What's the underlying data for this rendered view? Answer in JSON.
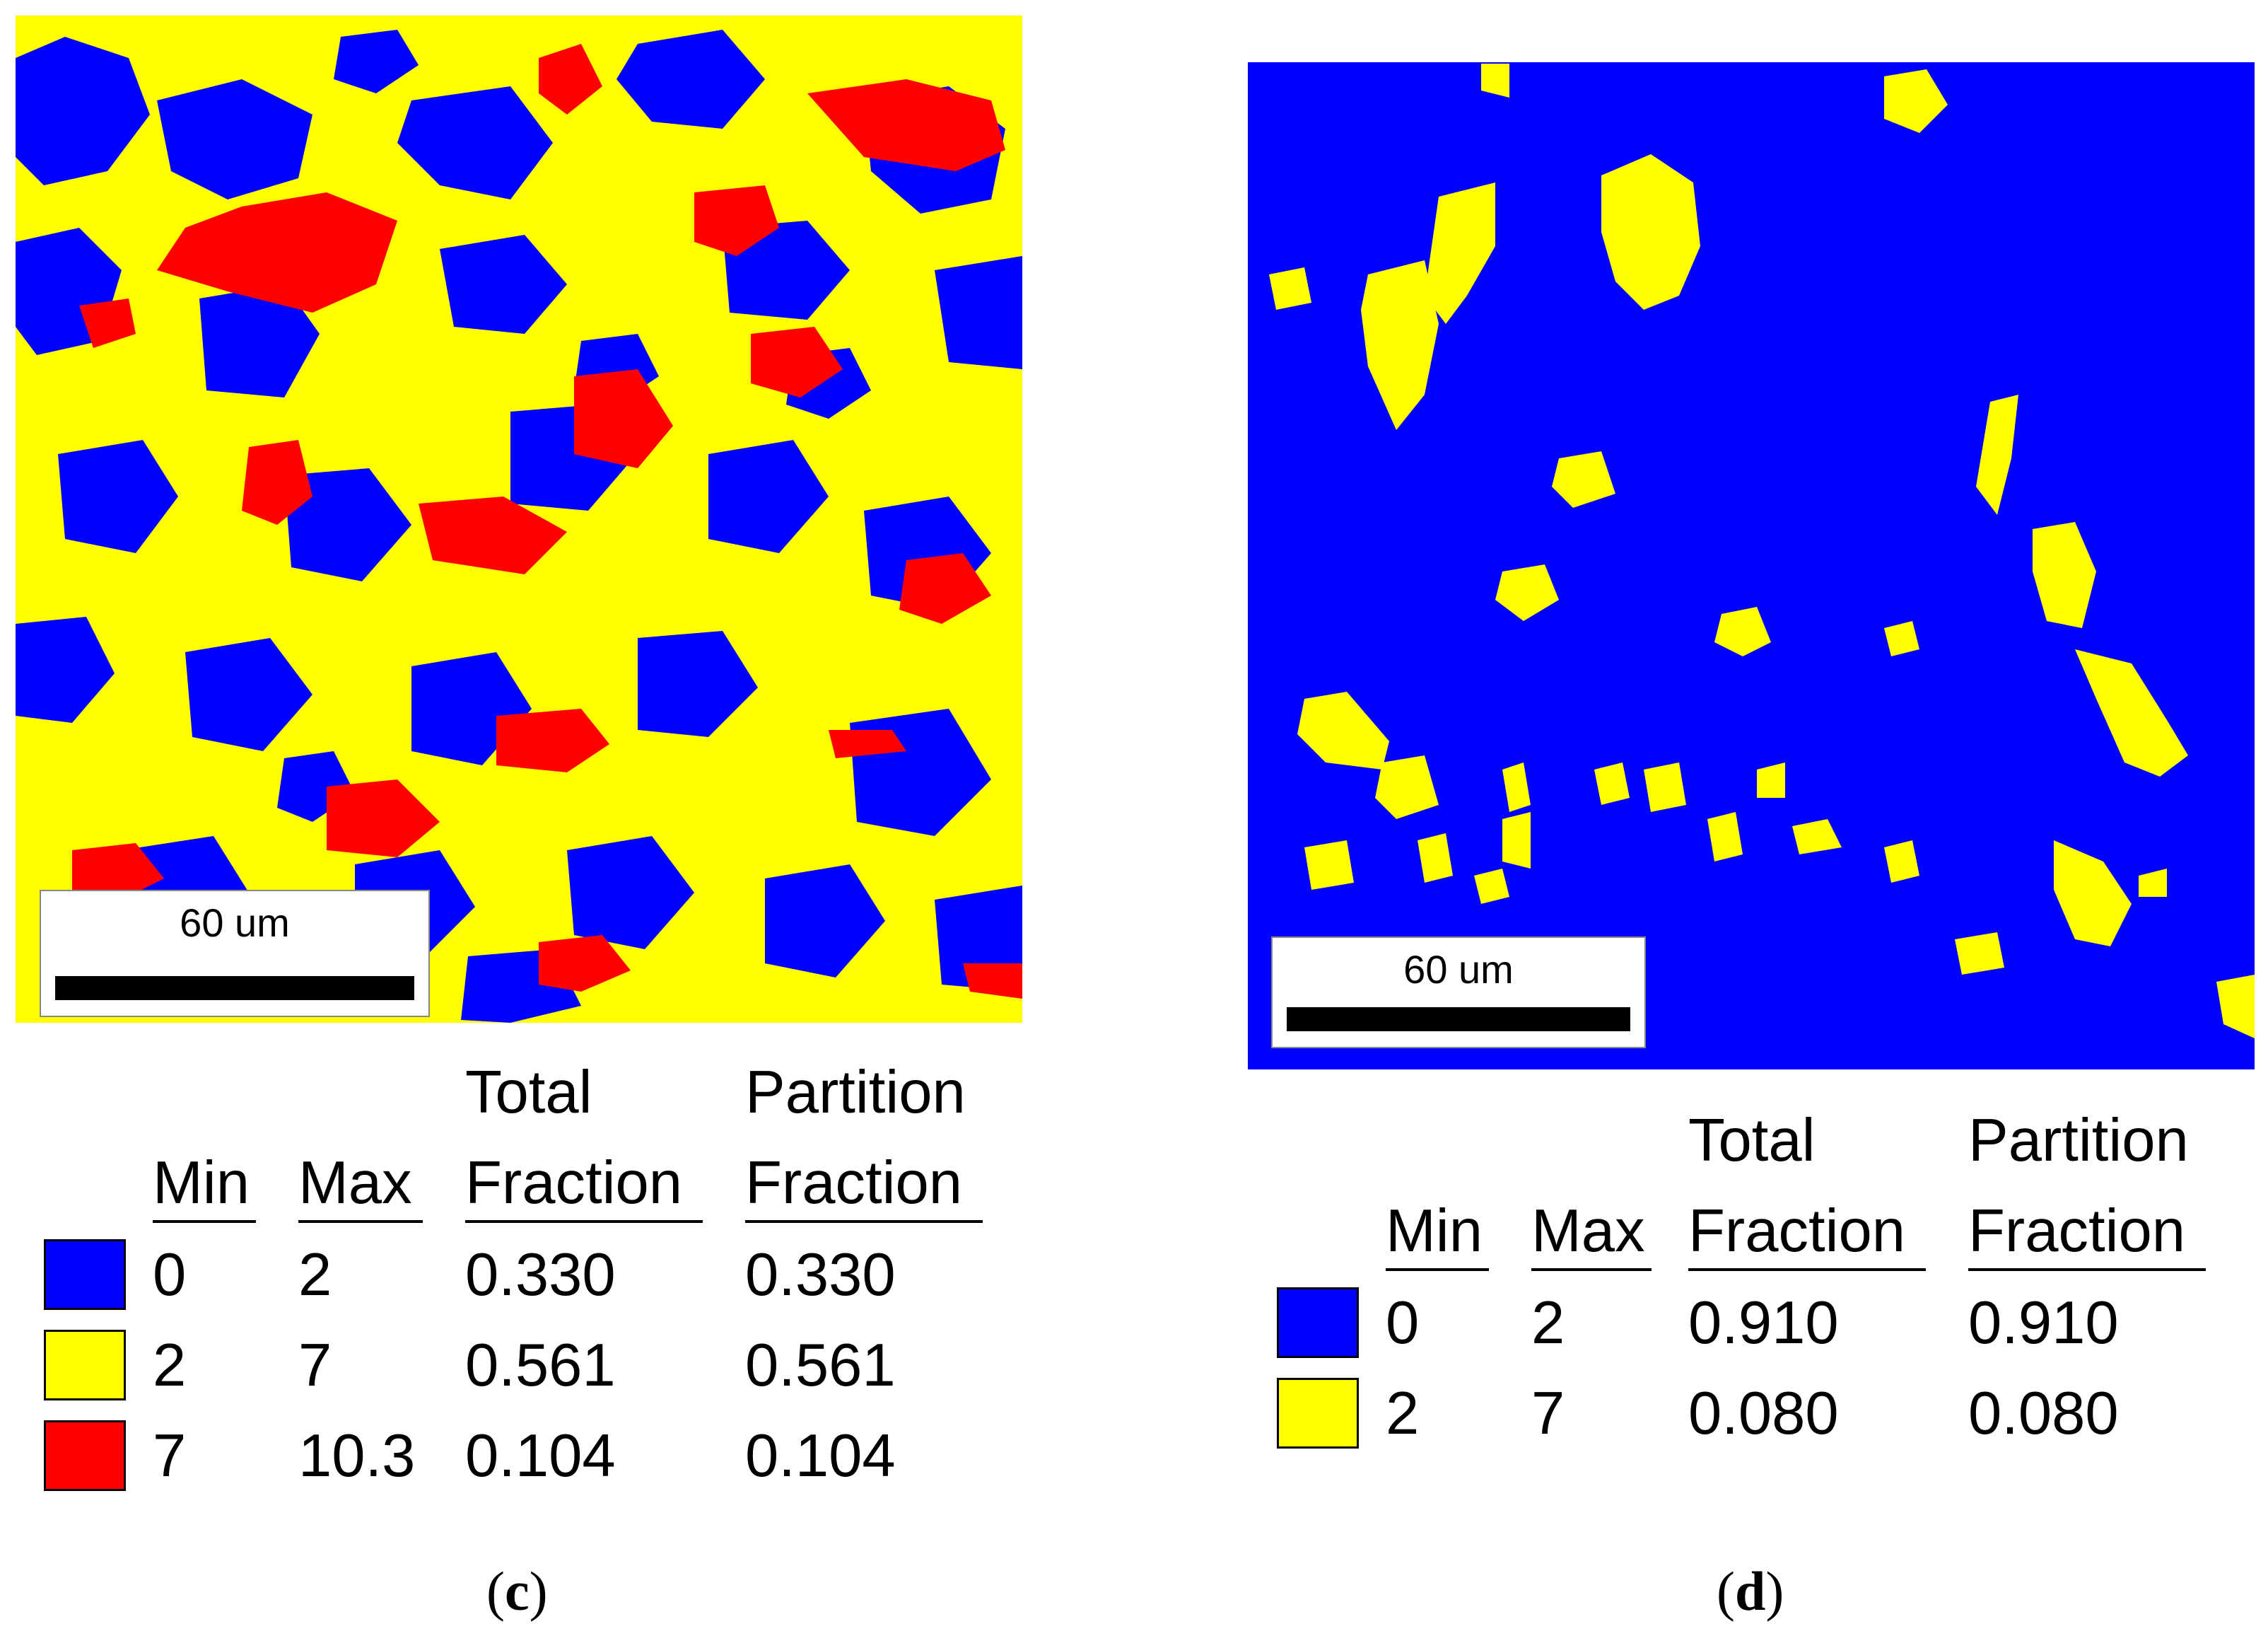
{
  "panel_c": {
    "scale_bar_label": "60 um",
    "headers": {
      "min": "Min",
      "max": "Max",
      "total_line1": "Total",
      "total_line2": "Fraction",
      "partition_line1": "Partition",
      "partition_line2": "Fraction"
    },
    "rows": [
      {
        "color": "#0000FF",
        "min": "0",
        "max": "2",
        "total": "0.330",
        "partition": "0.330"
      },
      {
        "color": "#FFFF00",
        "min": "2",
        "max": "7",
        "total": "0.561",
        "partition": "0.561"
      },
      {
        "color": "#FF0000",
        "min": "7",
        "max": "10.3",
        "total": "0.104",
        "partition": "0.104"
      }
    ],
    "caption_open": "(",
    "caption_letter": "c",
    "caption_close": ")"
  },
  "panel_d": {
    "scale_bar_label": "60 um",
    "headers": {
      "min": "Min",
      "max": "Max",
      "total_line1": "Total",
      "total_line2": "Fraction",
      "partition_line1": "Partition",
      "partition_line2": "Fraction"
    },
    "rows": [
      {
        "color": "#0000FF",
        "min": "0",
        "max": "2",
        "total": "0.910",
        "partition": "0.910"
      },
      {
        "color": "#FFFF00",
        "min": "2",
        "max": "7",
        "total": "0.080",
        "partition": "0.080"
      }
    ],
    "caption_open": "(",
    "caption_letter": "d",
    "caption_close": ")"
  },
  "colors": {
    "blue": "#0000FF",
    "yellow": "#FFFF00",
    "red": "#FF0000"
  }
}
